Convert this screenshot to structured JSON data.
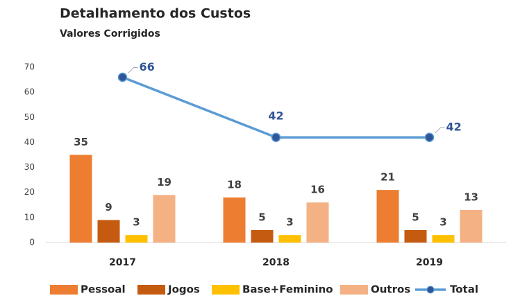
{
  "chart_data": {
    "type": "bar",
    "title": "Detalhamento dos Custos",
    "subtitle": "Valores Corrigidos",
    "categories": [
      "2017",
      "2018",
      "2019"
    ],
    "ylim": [
      0,
      70
    ],
    "yticks": [
      0,
      10,
      20,
      30,
      40,
      50,
      60,
      70
    ],
    "grid": false,
    "legend": "bottom",
    "series": [
      {
        "name": "Pessoal",
        "type": "bar",
        "color": "#ED7D31",
        "values": [
          35,
          18,
          21
        ]
      },
      {
        "name": "Jogos",
        "type": "bar",
        "color": "#C55A11",
        "values": [
          9,
          5,
          5
        ]
      },
      {
        "name": "Base+Feminino",
        "type": "bar",
        "color": "#FFC000",
        "values": [
          3,
          3,
          3
        ]
      },
      {
        "name": "Outros",
        "type": "bar",
        "color": "#F4B183",
        "values": [
          19,
          16,
          13
        ]
      },
      {
        "name": "Total",
        "type": "line",
        "color": "#5B9BD5",
        "values": [
          66,
          42,
          42
        ]
      }
    ]
  }
}
